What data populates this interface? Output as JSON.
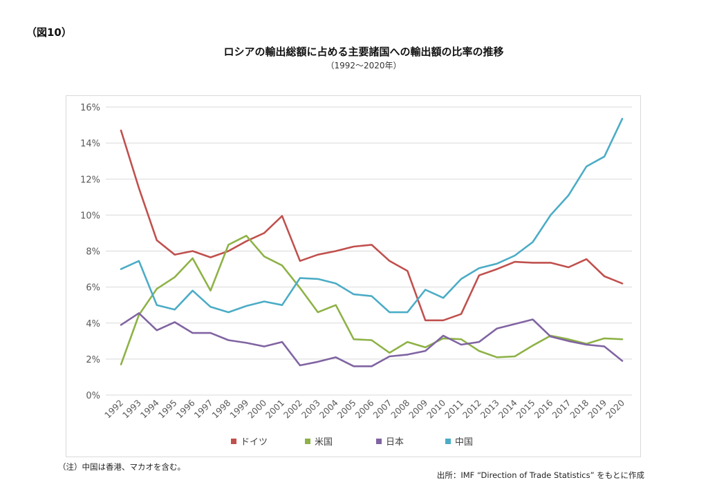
{
  "figure_label": "（図10）",
  "title": "ロシアの輸出総額に占める主要諸国への輸出額の比率の推移",
  "subtitle": "（1992～2020年）",
  "note": "（注）中国は香港、マカオを含む。",
  "source": "出所：IMF “Direction of Trade Statistics” をもとに作成",
  "chart_data": {
    "type": "line",
    "title": "ロシアの輸出総額に占める主要諸国への輸出額の比率の推移",
    "subtitle": "（1992～2020年）",
    "xlabel": "",
    "ylabel": "",
    "ylim": [
      0,
      16
    ],
    "yticks": [
      "0%",
      "2%",
      "4%",
      "6%",
      "8%",
      "10%",
      "12%",
      "14%",
      "16%"
    ],
    "grid": true,
    "legend_position": "bottom",
    "categories": [
      "1992",
      "1993",
      "1994",
      "1995",
      "1996",
      "1997",
      "1998",
      "1999",
      "2000",
      "2001",
      "2002",
      "2003",
      "2004",
      "2005",
      "2006",
      "2007",
      "2008",
      "2009",
      "2010",
      "2011",
      "2012",
      "2013",
      "2014",
      "2015",
      "2016",
      "2017",
      "2018",
      "2019",
      "2020"
    ],
    "series": [
      {
        "name": "ドイツ",
        "color": "#c0504d",
        "values": [
          14.7,
          11.5,
          8.6,
          7.8,
          8.0,
          7.65,
          8.0,
          8.55,
          9.0,
          9.95,
          7.45,
          7.8,
          8.0,
          8.25,
          8.35,
          7.45,
          6.9,
          4.15,
          4.15,
          4.5,
          6.65,
          7.0,
          7.4,
          7.35,
          7.35,
          7.1,
          7.55,
          6.6,
          6.2
        ]
      },
      {
        "name": "米国",
        "color": "#8db246",
        "values": [
          1.7,
          4.45,
          5.9,
          6.55,
          7.6,
          5.8,
          8.35,
          8.85,
          7.7,
          7.2,
          5.95,
          4.6,
          5.0,
          3.1,
          3.05,
          2.35,
          2.95,
          2.65,
          3.15,
          3.1,
          2.45,
          2.1,
          2.15,
          2.75,
          3.3,
          3.1,
          2.85,
          3.15,
          3.1
        ]
      },
      {
        "name": "日本",
        "color": "#8064a2",
        "values": [
          3.9,
          4.55,
          3.6,
          4.05,
          3.45,
          3.45,
          3.05,
          2.9,
          2.7,
          2.95,
          1.65,
          1.85,
          2.1,
          1.6,
          1.6,
          2.15,
          2.25,
          2.45,
          3.3,
          2.8,
          2.95,
          3.7,
          3.95,
          4.2,
          3.25,
          3.0,
          2.8,
          2.7,
          1.9
        ]
      },
      {
        "name": "中国",
        "color": "#4bacc6",
        "values": [
          7.0,
          7.45,
          5.0,
          4.75,
          5.8,
          4.9,
          4.6,
          4.95,
          5.2,
          5.0,
          6.5,
          6.45,
          6.2,
          5.6,
          5.5,
          4.6,
          4.6,
          5.85,
          5.4,
          6.45,
          7.05,
          7.3,
          7.75,
          8.5,
          10.0,
          11.1,
          12.7,
          13.25,
          15.35
        ]
      }
    ]
  }
}
